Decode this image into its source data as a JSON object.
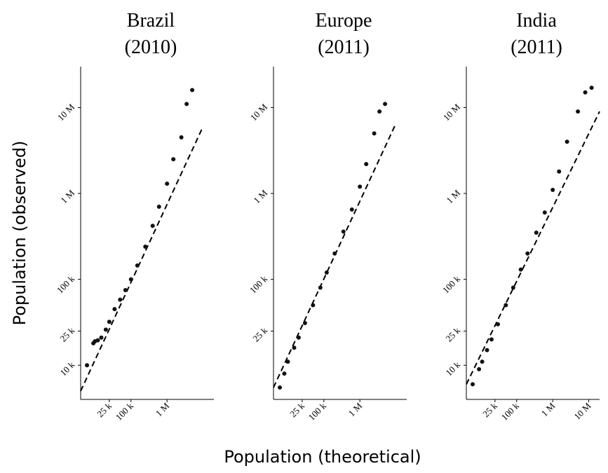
{
  "chart_data": [
    {
      "type": "scatter",
      "title": "Brazil",
      "subtitle": "(2010)",
      "ylabel": "Population (observed)",
      "scale": "log",
      "color": "#111111",
      "xlim": [
        4000,
        20000000
      ],
      "ylim": [
        4000,
        30000000
      ],
      "xticks": [
        {
          "value": 25000,
          "label": "25 k"
        },
        {
          "value": 100000,
          "label": "100 k"
        },
        {
          "value": 1000000,
          "label": "1 M"
        }
      ],
      "yticks": [
        {
          "value": 10000,
          "label": "10 k"
        },
        {
          "value": 25000,
          "label": "25 k"
        },
        {
          "value": 100000,
          "label": "100 k"
        },
        {
          "value": 1000000,
          "label": "1 M"
        },
        {
          "value": 10000000,
          "label": "10 M"
        }
      ],
      "x": [
        6000,
        9000,
        10000,
        12000,
        15000,
        20000,
        25000,
        35000,
        50000,
        70000,
        100000,
        150000,
        250000,
        400000,
        600000,
        1000000,
        1500000,
        2500000,
        3500000,
        5000000
      ],
      "values": [
        10000,
        18000,
        19000,
        19500,
        21000,
        26000,
        32000,
        45000,
        58000,
        75000,
        100000,
        145000,
        240000,
        420000,
        700000,
        1300000,
        2500000,
        4500000,
        11000000,
        16000000
      ],
      "reference": {
        "x": [
          4000,
          10000000
        ],
        "values": [
          5000,
          6000000
        ]
      }
    },
    {
      "type": "scatter",
      "title": "Europe",
      "subtitle": "(2011)",
      "xlabel": "Population (theoretical)",
      "scale": "log",
      "color": "#111111",
      "xlim": [
        4000,
        20000000
      ],
      "ylim": [
        4000,
        30000000
      ],
      "xticks": [
        {
          "value": 25000,
          "label": "25 k"
        },
        {
          "value": 100000,
          "label": "100 k"
        },
        {
          "value": 1000000,
          "label": "1 M"
        }
      ],
      "yticks": [
        {
          "value": 25000,
          "label": "25 k"
        },
        {
          "value": 100000,
          "label": "100 k"
        },
        {
          "value": 1000000,
          "label": "1 M"
        },
        {
          "value": 10000000,
          "label": "10 M"
        }
      ],
      "x": [
        6000,
        8000,
        10000,
        15000,
        20000,
        30000,
        50000,
        80000,
        120000,
        200000,
        350000,
        600000,
        1000000,
        1500000,
        2500000,
        3500000,
        5000000
      ],
      "values": [
        5500,
        8000,
        11000,
        16000,
        21000,
        31000,
        50000,
        80000,
        120000,
        200000,
        360000,
        650000,
        1200000,
        2200000,
        5000000,
        9000000,
        11000000
      ],
      "reference": {
        "x": [
          4000,
          10000000
        ],
        "values": [
          5500,
          6500000
        ]
      }
    },
    {
      "type": "scatter",
      "title": "India",
      "subtitle": "(2011)",
      "scale": "log",
      "color": "#111111",
      "xlim": [
        4000,
        20000000
      ],
      "ylim": [
        4000,
        30000000
      ],
      "xticks": [
        {
          "value": 25000,
          "label": "25 k"
        },
        {
          "value": 100000,
          "label": "100 k"
        },
        {
          "value": 1000000,
          "label": "1 M"
        },
        {
          "value": 10000000,
          "label": "10 M"
        }
      ],
      "yticks": [
        {
          "value": 10000,
          "label": "10 k"
        },
        {
          "value": 25000,
          "label": "25 k"
        },
        {
          "value": 100000,
          "label": "100 k"
        },
        {
          "value": 1000000,
          "label": "1 M"
        },
        {
          "value": 10000000,
          "label": "10 M"
        }
      ],
      "x": [
        6000,
        9000,
        11000,
        15000,
        20000,
        30000,
        50000,
        80000,
        130000,
        200000,
        350000,
        600000,
        1000000,
        1500000,
        2500000,
        5000000,
        8000000,
        12000000
      ],
      "values": [
        6000,
        9000,
        11000,
        15000,
        20000,
        30000,
        50000,
        80000,
        130000,
        200000,
        350000,
        600000,
        1100000,
        1800000,
        4000000,
        9000000,
        15000000,
        17000000
      ],
      "reference": {
        "x": [
          4000,
          20000000
        ],
        "values": [
          6000,
          9000000
        ]
      }
    }
  ]
}
